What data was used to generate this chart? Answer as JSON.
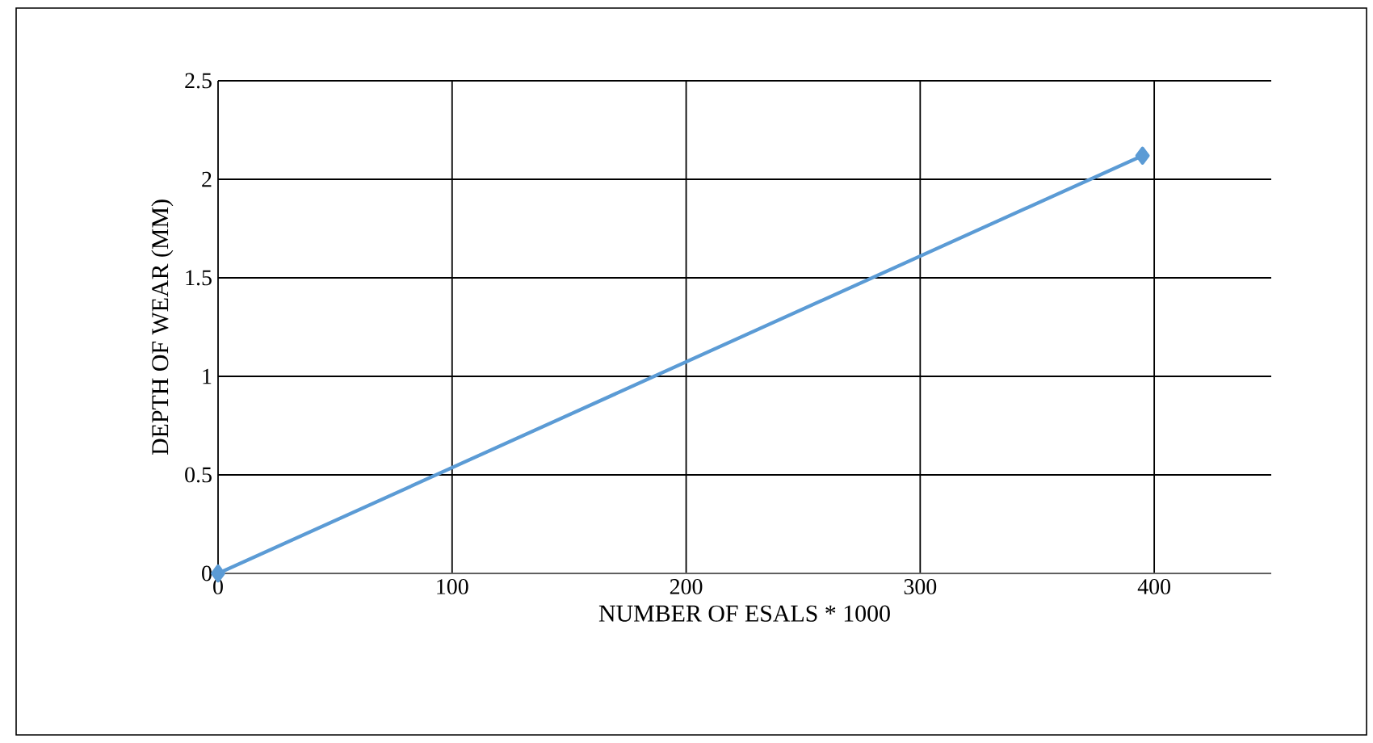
{
  "chart_data": {
    "type": "line",
    "xlabel": "NUMBER OF ESALS * 1000",
    "ylabel": "DEPTH OF WEAR (MM)",
    "x": [
      0,
      395
    ],
    "series": [
      {
        "color": "#5b9bd5",
        "values": [
          0,
          2.12
        ]
      }
    ],
    "xlim": [
      0,
      450
    ],
    "xticks": [
      0,
      100,
      200,
      300,
      400
    ],
    "ylim": [
      0,
      2.5
    ],
    "yticks": [
      0,
      0.5,
      1,
      1.5,
      2,
      2.5
    ],
    "grid": true,
    "marker": "diamond",
    "line_style": "solid"
  }
}
